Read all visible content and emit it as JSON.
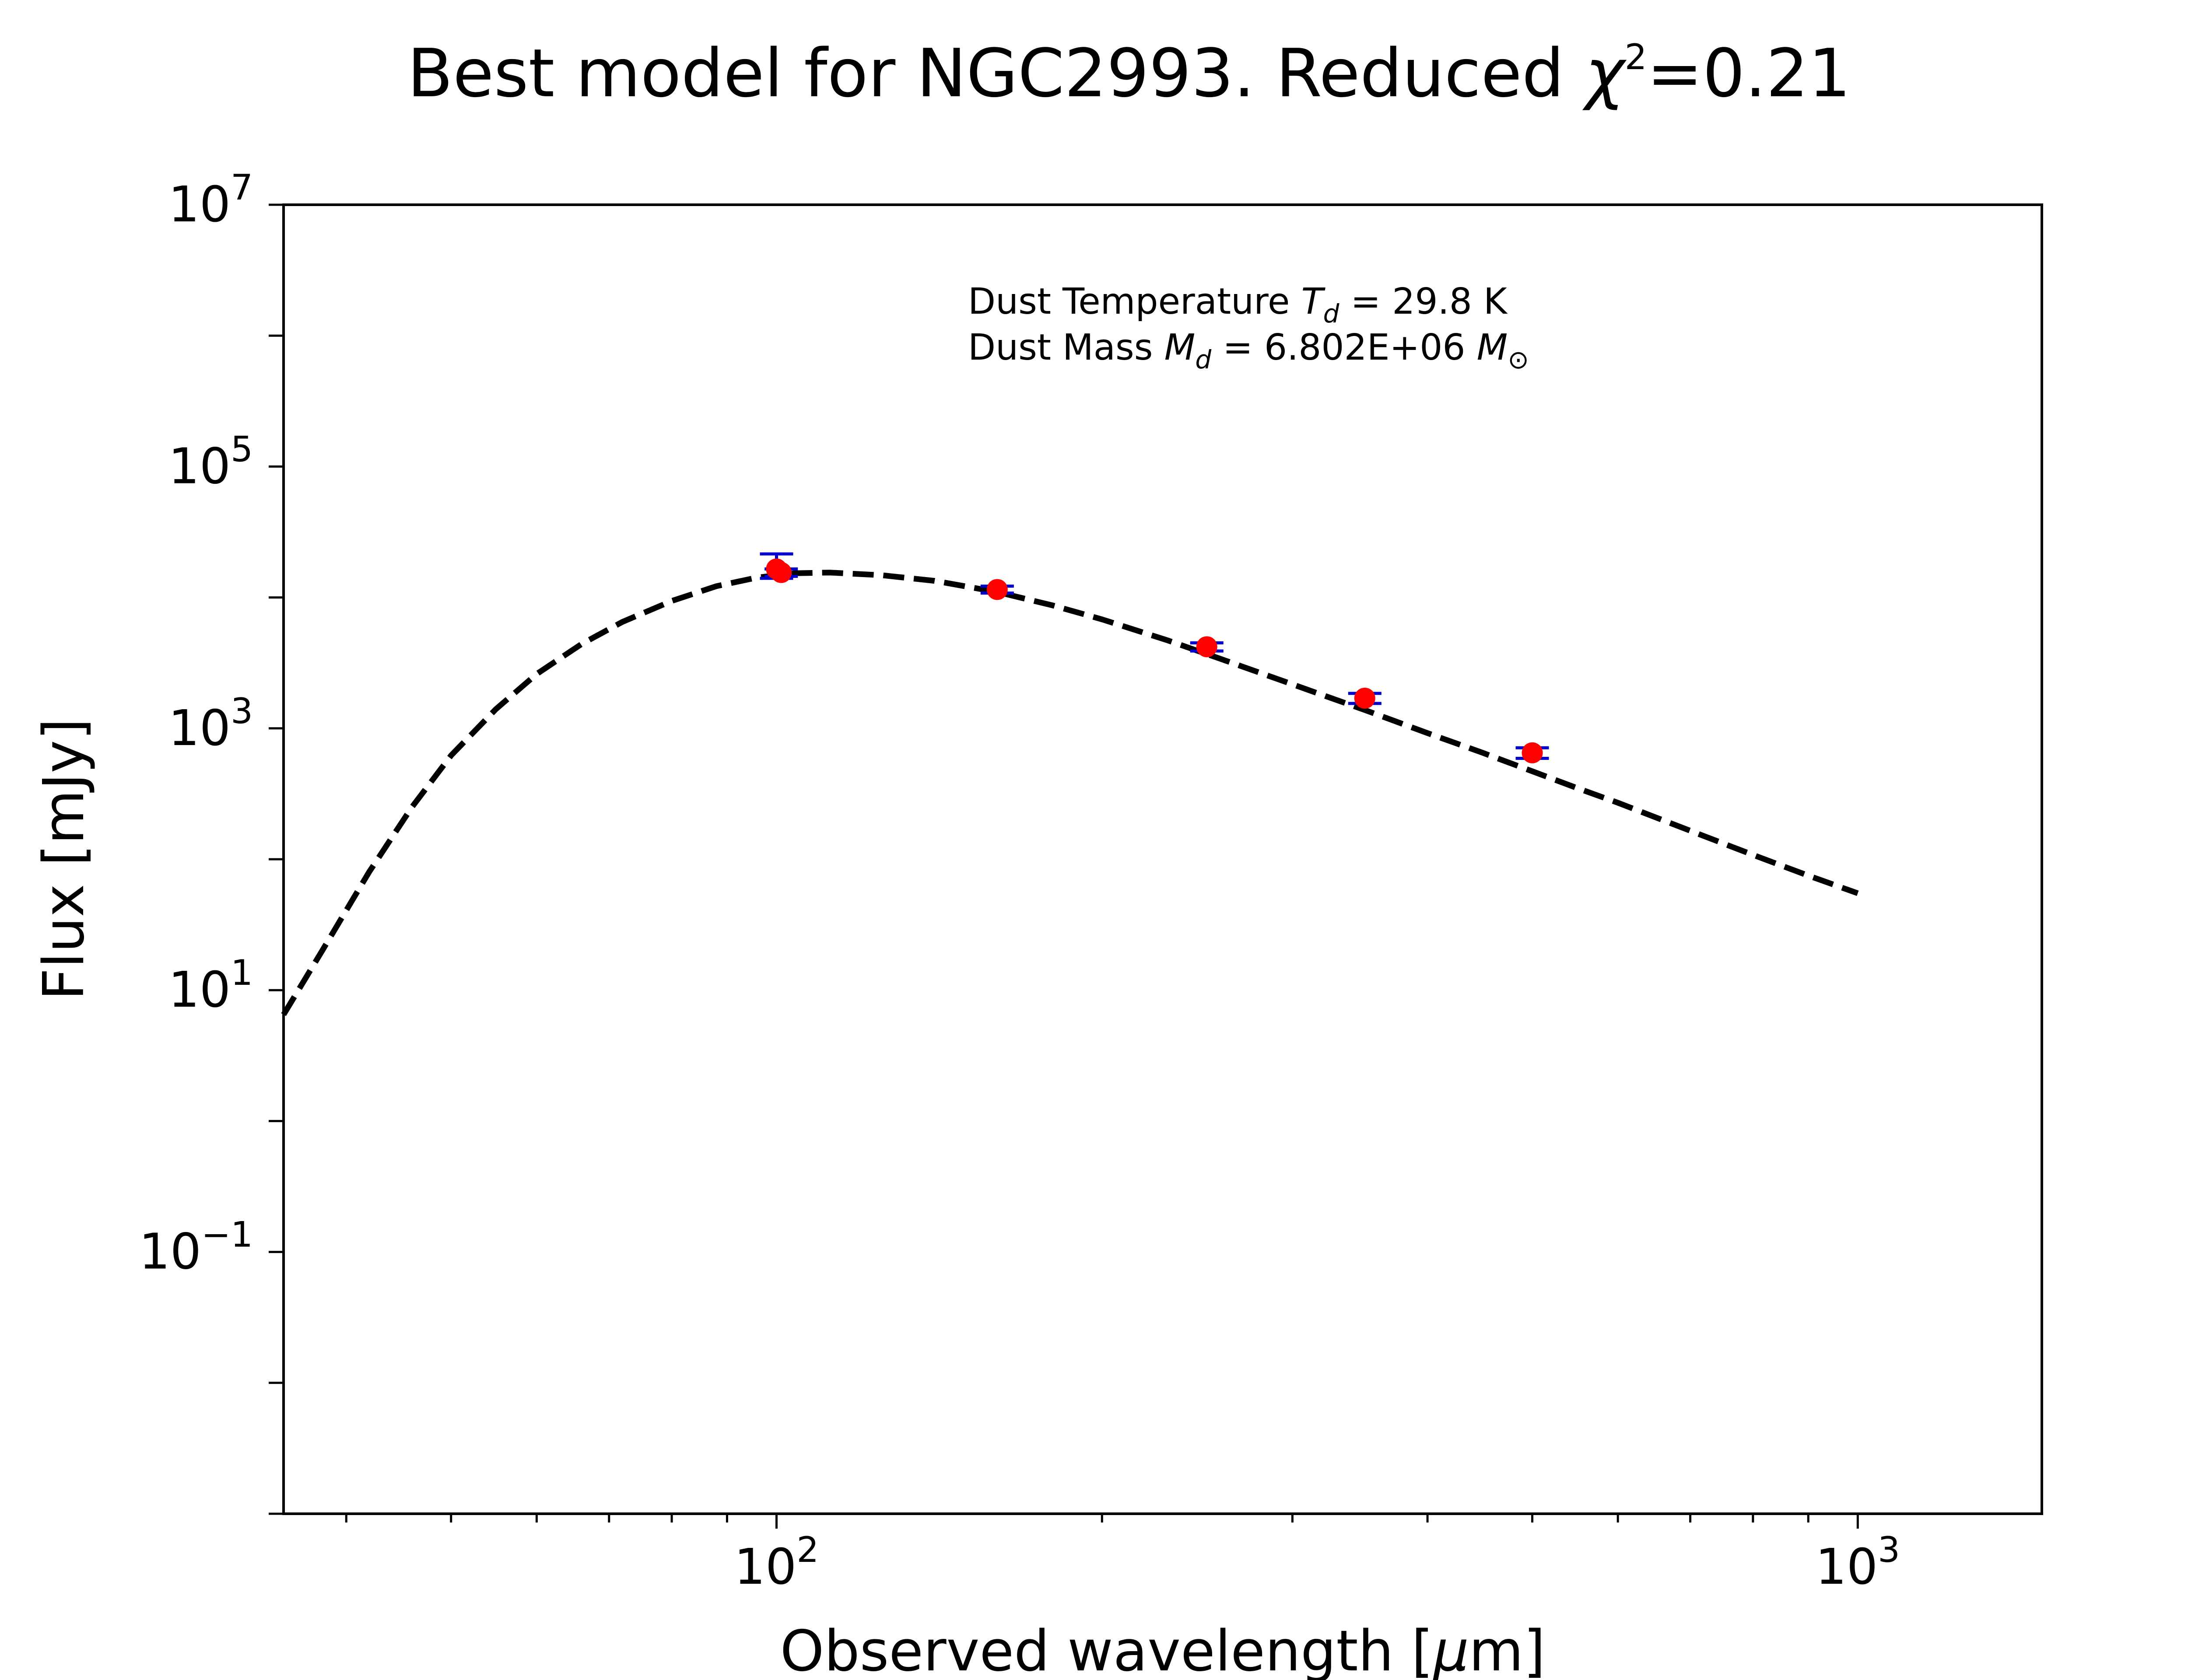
{
  "chart_data": {
    "type": "scatter",
    "title": {
      "main": "Best model for NGC2993. Reduced ",
      "chi_symbol": "χ",
      "chi_power": "2",
      "chi_value": "=0.21"
    },
    "xlabel": {
      "text": "Observed wavelength [",
      "unit_symbol": "μ",
      "unit_rest": "m]"
    },
    "ylabel": "Flux [mJy]",
    "x_scale": "log",
    "y_scale": "log",
    "xlim": [
      35,
      1480
    ],
    "ylim": [
      0.001,
      10000000
    ],
    "x_ticks": [
      {
        "base": "10",
        "exp": "2",
        "value": 100
      },
      {
        "base": "10",
        "exp": "3",
        "value": 1000
      }
    ],
    "y_ticks": [
      {
        "base": "10",
        "exp": "−1",
        "value": 0.1
      },
      {
        "base": "10",
        "exp": "1",
        "value": 10
      },
      {
        "base": "10",
        "exp": "3",
        "value": 1000
      },
      {
        "base": "10",
        "exp": "5",
        "value": 100000
      },
      {
        "base": "10",
        "exp": "7",
        "value": 10000000
      }
    ],
    "grid": false,
    "annotation": {
      "line1": {
        "prefix": "Dust Temperature ",
        "symbol": "T",
        "subscript": "d",
        "suffix": " = 29.8 K"
      },
      "line2": {
        "prefix": "Dust Mass ",
        "symbol": "M",
        "subscript": "d",
        "value": " = 6.802E+06 ",
        "unit": "M",
        "unit_subscript": "⊙"
      }
    },
    "model": {
      "style": "dashed",
      "color": "#000000",
      "x": [
        35,
        38,
        42,
        46,
        50,
        55,
        60,
        66,
        72,
        80,
        88,
        96,
        104,
        112,
        125,
        140,
        160,
        180,
        200,
        230,
        260,
        300,
        350,
        400,
        450,
        500,
        550,
        600,
        700,
        800,
        900,
        1000
      ],
      "y": [
        6.5,
        20,
        80,
        250,
        620,
        1400,
        2600,
        4400,
        6500,
        9400,
        12200,
        14200,
        15300,
        15500,
        14800,
        13400,
        11000,
        8700,
        6800,
        4700,
        3300,
        2170,
        1380,
        920,
        650,
        470,
        350,
        270,
        165,
        108,
        75,
        55
      ]
    },
    "points": {
      "color": "#ff0000",
      "errorbar_color": "#0000cc",
      "x": [
        100,
        101,
        160,
        250,
        350,
        500
      ],
      "y": [
        16500,
        15500,
        11500,
        4200,
        1700,
        650
      ],
      "yerr_low": [
        2500,
        1000,
        700,
        300,
        150,
        60
      ],
      "yerr_high": [
        5000,
        1000,
        700,
        300,
        150,
        60
      ]
    }
  }
}
